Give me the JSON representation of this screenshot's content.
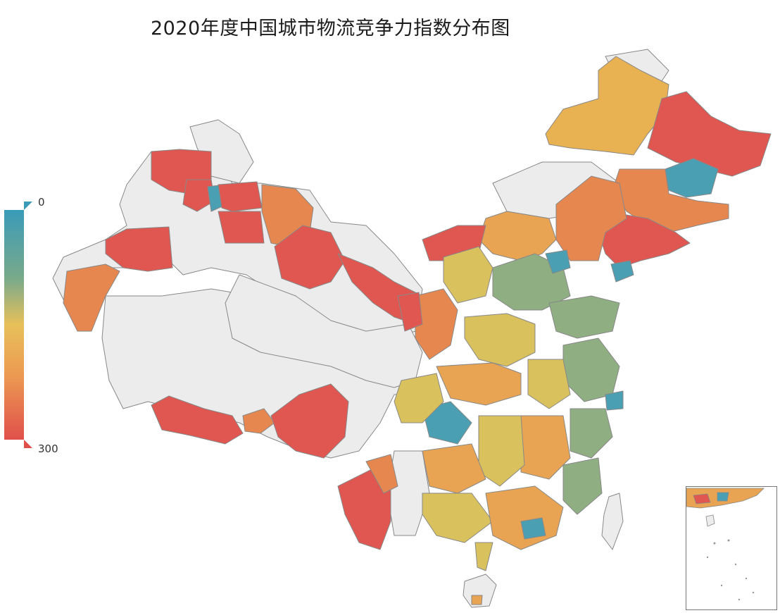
{
  "title": "2020年度中国城市物流竞争力指数分布图",
  "legend": {
    "min_label": "0",
    "max_label": "300",
    "min_color": "#3a9bb8",
    "max_color": "#e0504a"
  },
  "colors": {
    "teal": "#4a9fb3",
    "green": "#8fae82",
    "yellow": "#d9c15e",
    "orange": "#e8a452",
    "deep_orange": "#e6874f",
    "red": "#e05650",
    "no_data": "#ececec",
    "border": "#777777"
  }
}
